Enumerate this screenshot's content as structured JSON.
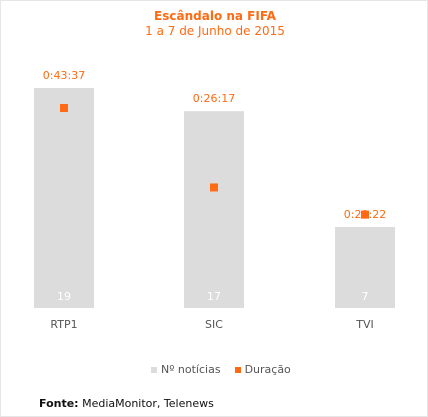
{
  "chart_data": {
    "type": "bar",
    "title": "Escândalo na FIFA",
    "subtitle": "1 a 7 de Junho de 2015",
    "categories": [
      "RTP1",
      "SIC",
      "TVI"
    ],
    "series": [
      {
        "name": "Nº notícias",
        "type": "bar",
        "color": "#dcdcdc",
        "values": [
          19,
          17,
          7
        ]
      },
      {
        "name": "Duração",
        "type": "scatter",
        "color": "#ff6a13",
        "values": [
          2617,
          1577,
          1222
        ],
        "labels": [
          "0:43:37",
          "0:26:17",
          "0:20:22"
        ]
      }
    ],
    "grid": false,
    "legend_position": "bottom"
  },
  "source": {
    "label": "Fonte:",
    "text": "MediaMonitor, Telenews"
  },
  "colors": {
    "accent": "#ff6a13",
    "bar": "#dcdcdc"
  }
}
